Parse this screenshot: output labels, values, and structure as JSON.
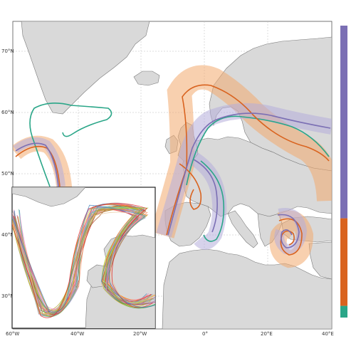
{
  "map": {
    "lat_labels": [
      "70°N",
      "60°N",
      "50°N",
      "40°N",
      "30°N"
    ],
    "lon_labels": [
      "60°W",
      "40°W",
      "20°W",
      "0°",
      "20°E",
      "40°E"
    ]
  },
  "colors": {
    "sea": "#ffffff",
    "land": "#d9d9d9",
    "coast": "#7a7a7a",
    "cluster_purple": "#7b6fb4",
    "cluster_orange": "#d9631f",
    "cluster_green": "#2aa688",
    "band_purple": "#b5addb",
    "band_orange": "#f2a96e"
  },
  "colorbar": {
    "segments": [
      {
        "name": "purple",
        "color": "#7b6fb4",
        "fraction": 0.66
      },
      {
        "name": "orange",
        "color": "#d9631f",
        "fraction": 0.3
      },
      {
        "name": "green",
        "color": "#2aa688",
        "fraction": 0.04
      }
    ]
  },
  "inset": {
    "track_colors": [
      "#e41a1c",
      "#377eb8",
      "#4daf4a",
      "#984ea3",
      "#ff7f00",
      "#c4b51a",
      "#a65628",
      "#f781bf",
      "#999999",
      "#66c2a5",
      "#fc8d62",
      "#8da0cb",
      "#e78ac3",
      "#a6d854",
      "#b3a11f",
      "#e5c494"
    ]
  }
}
